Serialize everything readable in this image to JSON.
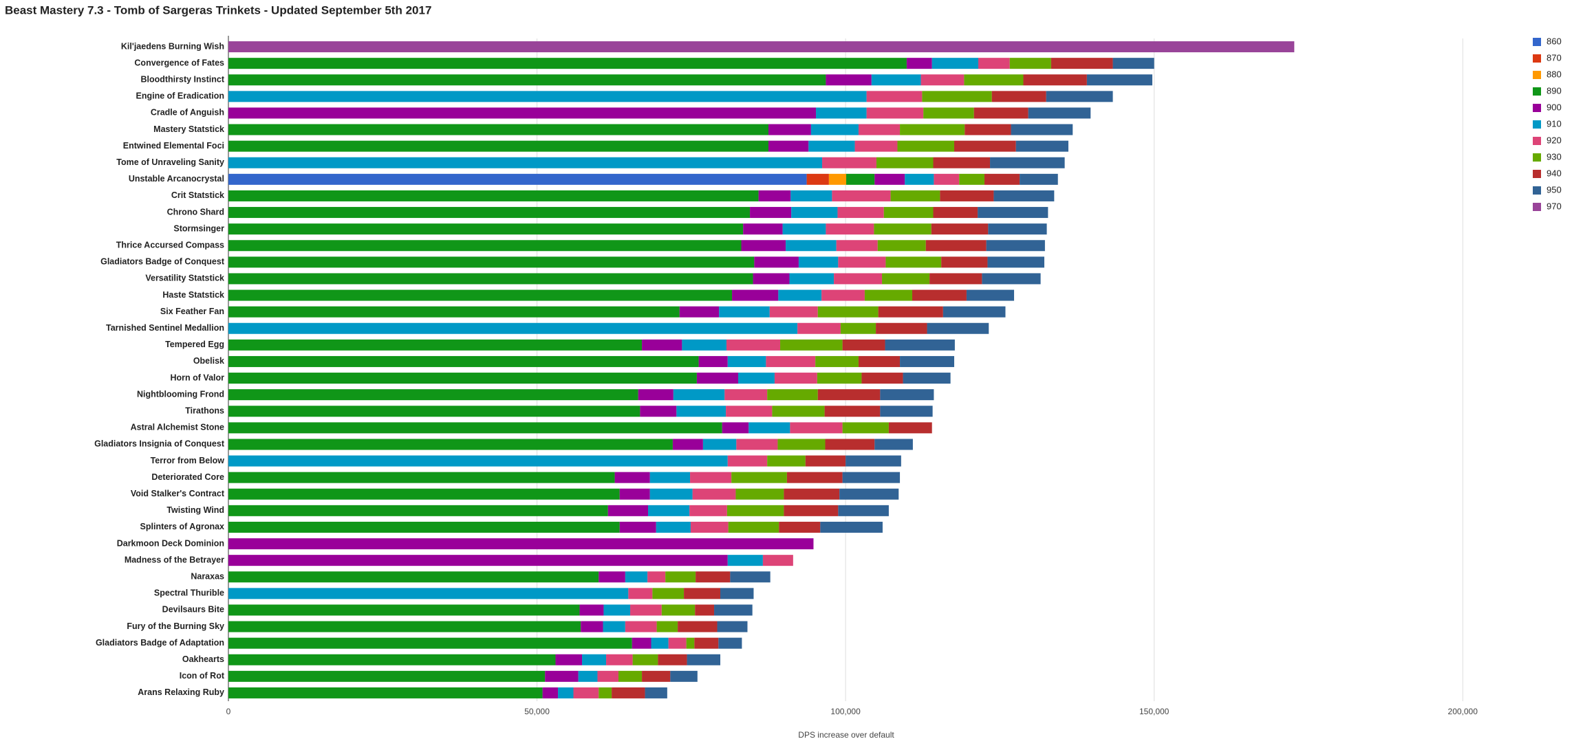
{
  "chart_data": {
    "type": "stacked-bar-horizontal",
    "title": "Beast Mastery 7.3 - Tomb of Sargeras Trinkets - Updated September 5th 2017",
    "x_label": "DPS increase over default",
    "categories": [
      "Kil'jaedens Burning Wish",
      "Convergence of Fates",
      "Bloodthirsty Instinct",
      "Engine of Eradication",
      "Cradle of Anguish",
      "Mastery Statstick",
      "Entwined Elemental Foci",
      "Tome of Unraveling Sanity",
      "Unstable Arcanocrystal",
      "Crit Statstick",
      "Chrono Shard",
      "Stormsinger",
      "Thrice Accursed Compass",
      "Gladiators Badge of Conquest",
      "Versatility Statstick",
      "Haste Statstick",
      "Six Feather Fan",
      "Tarnished Sentinel Medallion",
      "Tempered Egg",
      "Obelisk",
      "Horn of Valor",
      "Nightblooming Frond",
      "Tirathons",
      "Astral Alchemist Stone",
      "Gladiators Insignia of Conquest",
      "Terror from Below",
      "Deteriorated Core",
      "Void Stalker's Contract",
      "Twisting Wind",
      "Splinters of Agronax",
      "Darkmoon Deck Dominion",
      "Madness of the Betrayer",
      "Naraxas",
      "Spectral Thurible",
      "Devilsaurs Bite",
      "Fury of the Burning Sky",
      "Gladiators Badge of Adaptation",
      "Oakhearts",
      "Icon of Rot",
      "Arans Relaxing Ruby"
    ],
    "series": [
      {
        "name": "860",
        "color": "#3366cc",
        "values": [
          null,
          null,
          null,
          null,
          null,
          null,
          null,
          null,
          93700,
          null,
          null,
          null,
          null,
          null,
          null,
          null,
          null,
          null,
          null,
          null,
          null,
          null,
          null,
          null,
          null,
          null,
          null,
          null,
          null,
          null,
          null,
          null,
          null,
          null,
          null,
          null,
          null,
          null,
          null,
          null
        ]
      },
      {
        "name": "870",
        "color": "#dc3912",
        "values": [
          null,
          null,
          null,
          null,
          null,
          null,
          null,
          null,
          3600,
          null,
          null,
          null,
          null,
          null,
          null,
          null,
          null,
          null,
          null,
          null,
          null,
          null,
          null,
          null,
          null,
          null,
          null,
          null,
          null,
          null,
          null,
          null,
          null,
          null,
          null,
          null,
          null,
          null,
          null,
          null
        ]
      },
      {
        "name": "880",
        "color": "#ff9900",
        "values": [
          null,
          null,
          null,
          null,
          null,
          null,
          null,
          null,
          2800,
          null,
          null,
          null,
          null,
          null,
          null,
          null,
          null,
          null,
          null,
          null,
          null,
          null,
          null,
          null,
          null,
          null,
          null,
          null,
          null,
          null,
          null,
          null,
          null,
          null,
          null,
          null,
          null,
          null,
          null,
          null
        ]
      },
      {
        "name": "890",
        "color": "#109618",
        "values": [
          null,
          109900,
          96800,
          null,
          null,
          87500,
          87500,
          null,
          4600,
          85900,
          84500,
          83400,
          83100,
          85200,
          85000,
          81600,
          73100,
          null,
          67000,
          76200,
          75900,
          66400,
          66700,
          80000,
          72000,
          null,
          62600,
          63400,
          61500,
          63400,
          null,
          null,
          60000,
          null,
          56900,
          57100,
          65400,
          53000,
          51300,
          50900
        ]
      },
      {
        "name": "900",
        "color": "#990099",
        "values": [
          null,
          4100,
          7400,
          null,
          95200,
          6900,
          6500,
          null,
          4900,
          5200,
          6700,
          6400,
          7200,
          7200,
          5900,
          7500,
          6400,
          null,
          6500,
          4700,
          6700,
          5700,
          5900,
          4300,
          4900,
          null,
          5700,
          4900,
          6500,
          5900,
          94800,
          80900,
          4300,
          null,
          3900,
          3600,
          3100,
          4300,
          5400,
          2500
        ]
      },
      {
        "name": "910",
        "color": "#0099c6",
        "values": [
          null,
          7500,
          8000,
          103400,
          8200,
          7700,
          7500,
          96200,
          4700,
          6700,
          7500,
          7000,
          8200,
          6400,
          7200,
          7000,
          8200,
          92200,
          7200,
          6200,
          5900,
          8300,
          8000,
          6700,
          5400,
          80900,
          6500,
          6900,
          6700,
          5600,
          null,
          5700,
          3600,
          64800,
          4300,
          3600,
          2800,
          3900,
          3100,
          2500
        ]
      },
      {
        "name": "920",
        "color": "#dd4477",
        "values": [
          null,
          5100,
          7000,
          9000,
          9200,
          6700,
          6900,
          8800,
          4100,
          9500,
          7500,
          7800,
          6700,
          7700,
          7800,
          7000,
          7800,
          7000,
          8700,
          8000,
          6900,
          6900,
          7500,
          8500,
          6700,
          6400,
          6700,
          7000,
          6100,
          6100,
          null,
          4900,
          2900,
          3900,
          5100,
          5100,
          2900,
          4300,
          3400,
          4100
        ]
      },
      {
        "name": "930",
        "color": "#66aa00",
        "values": [
          null,
          6700,
          9600,
          11300,
          8200,
          10500,
          9200,
          9200,
          4100,
          8000,
          8000,
          9300,
          7800,
          9000,
          7700,
          7700,
          9800,
          5700,
          10100,
          7000,
          7200,
          8200,
          8500,
          7500,
          7700,
          6200,
          9000,
          7800,
          9200,
          8200,
          null,
          null,
          4900,
          5100,
          5400,
          3400,
          1300,
          4100,
          3800,
          2100
        ]
      },
      {
        "name": "940",
        "color": "#b82e2e",
        "values": [
          null,
          10000,
          10300,
          8800,
          8800,
          7500,
          10000,
          9200,
          5700,
          8700,
          7200,
          9200,
          9800,
          7500,
          8500,
          8800,
          10500,
          8300,
          6900,
          6700,
          6700,
          10100,
          9000,
          7000,
          8000,
          6500,
          9000,
          9000,
          8800,
          6700,
          null,
          null,
          5600,
          5900,
          3100,
          6400,
          3900,
          4700,
          4600,
          5400
        ]
      },
      {
        "name": "950",
        "color": "#316395",
        "values": [
          null,
          6700,
          10600,
          10800,
          10100,
          10000,
          8500,
          12100,
          6200,
          9800,
          11400,
          9500,
          9500,
          9200,
          9500,
          7700,
          10100,
          10000,
          11300,
          8800,
          7700,
          8700,
          8500,
          null,
          6200,
          9000,
          9300,
          9600,
          8200,
          10100,
          null,
          null,
          6500,
          5400,
          6200,
          4900,
          3800,
          5400,
          4400,
          3600
        ]
      },
      {
        "name": "970",
        "color": "#994499",
        "values": [
          172700,
          null,
          null,
          null,
          null,
          null,
          null,
          null,
          null,
          null,
          null,
          null,
          null,
          null,
          null,
          null,
          null,
          null,
          null,
          null,
          null,
          null,
          null,
          null,
          null,
          null,
          null,
          null,
          null,
          null,
          null,
          null,
          null,
          null,
          null,
          null,
          null,
          null,
          null,
          null
        ]
      }
    ],
    "xlim": [
      0,
      208000
    ],
    "xticks": [
      0,
      {
        "value": 50000,
        "label": "50,000"
      },
      {
        "value": 100000,
        "label": "100,000"
      },
      {
        "value": 150000,
        "label": "150,000"
      },
      {
        "value": 200000,
        "label": "200,000"
      }
    ],
    "grid": true,
    "legend": "right"
  }
}
